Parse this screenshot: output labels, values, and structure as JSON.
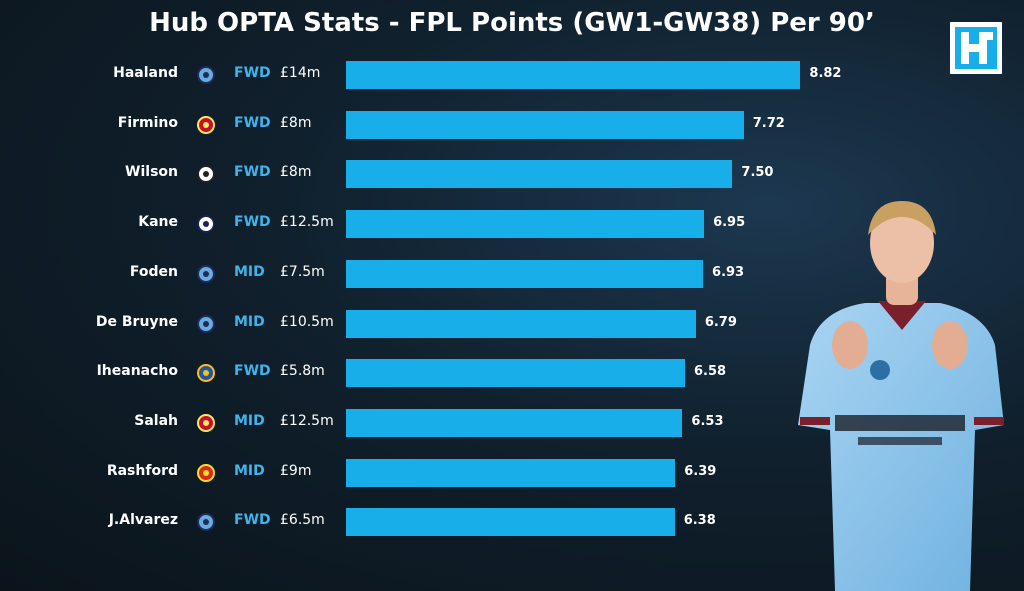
{
  "title": "Hub OPTA Stats - FPL Points (GW1-GW38) Per 90’",
  "logo_icon": "hub-logo-icon",
  "colors": {
    "bar": "#18aeea",
    "position": "#3fb4ec",
    "background": "#0f1b24"
  },
  "chart_data": {
    "type": "bar",
    "orientation": "horizontal",
    "title": "Hub OPTA Stats - FPL Points (GW1-GW38) Per 90’",
    "xlim": [
      0,
      9.2
    ],
    "grid": false,
    "legend": "none",
    "categories": [
      "Haaland",
      "Firmino",
      "Wilson",
      "Kane",
      "Foden",
      "De Bruyne",
      "Iheanacho",
      "Salah",
      "Rashford",
      "J.Alvarez"
    ],
    "values": [
      8.82,
      7.72,
      7.5,
      6.95,
      6.93,
      6.79,
      6.58,
      6.53,
      6.39,
      6.38
    ],
    "value_labels": [
      "8.82",
      "7.72",
      "7.50",
      "6.95",
      "6.93",
      "6.79",
      "6.58",
      "6.53",
      "6.39",
      "6.38"
    ],
    "positions": [
      "FWD",
      "FWD",
      "FWD",
      "FWD",
      "MID",
      "MID",
      "FWD",
      "MID",
      "MID",
      "FWD"
    ],
    "prices": [
      "£14m",
      "£8m",
      "£8m",
      "£12.5m",
      "£7.5m",
      "£10.5m",
      "£5.8m",
      "£12.5m",
      "£9m",
      "£6.5m"
    ],
    "club_icons": [
      "man-city-crest-icon",
      "liverpool-crest-icon",
      "newcastle-crest-icon",
      "tottenham-crest-icon",
      "man-city-crest-icon",
      "man-city-crest-icon",
      "leicester-crest-icon",
      "liverpool-crest-icon",
      "man-united-crest-icon",
      "man-city-crest-icon"
    ]
  }
}
